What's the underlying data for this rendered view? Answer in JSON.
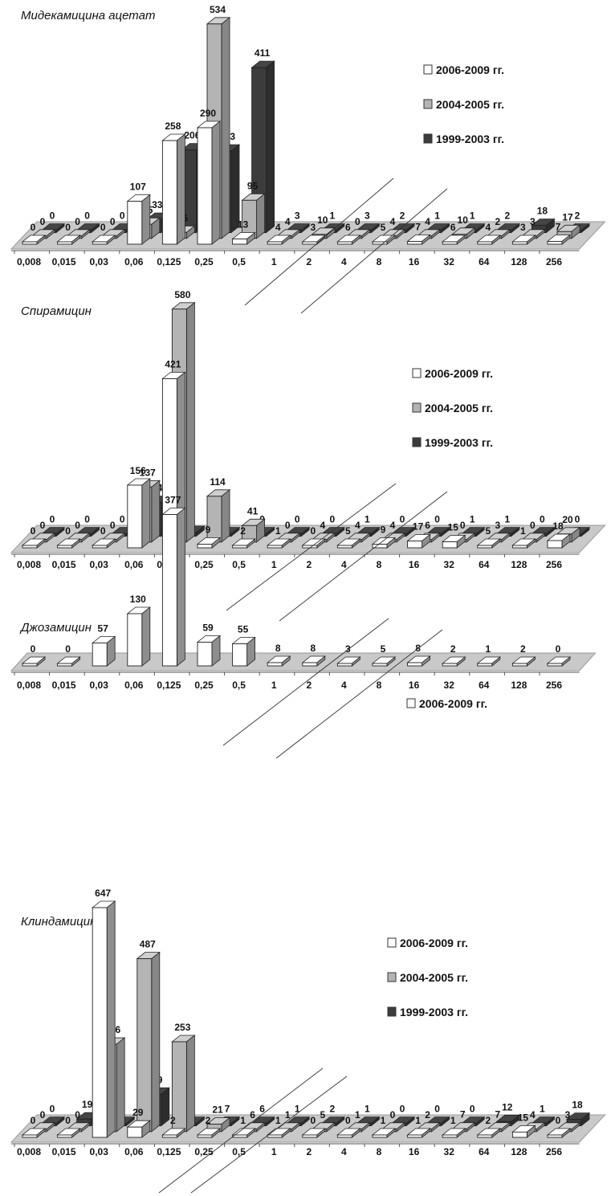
{
  "colors": {
    "series_2006_2009": "#ffffff",
    "series_2004_2005": "#b4b4b4",
    "series_1999_2003": "#3c3c3c",
    "floor": "#c9c9c9",
    "edge": "#222222"
  },
  "chart_data": [
    {
      "type": "bar",
      "title": "Мидекамицина ацетат",
      "categories": [
        "0,008",
        "0,015",
        "0,03",
        "0,06",
        "0,125",
        "0,25",
        "0,5",
        "1",
        "2",
        "4",
        "8",
        "16",
        "32",
        "64",
        "128",
        "256"
      ],
      "series": [
        {
          "name": "2006-2009 гг.",
          "values": [
            0,
            0,
            0,
            107,
            258,
            290,
            13,
            4,
            3,
            6,
            5,
            7,
            6,
            4,
            3,
            7
          ]
        },
        {
          "name": "2004-2005 гг.",
          "values": [
            0,
            0,
            0,
            35,
            15,
            534,
            95,
            4,
            10,
            0,
            4,
            4,
            10,
            2,
            3,
            17
          ]
        },
        {
          "name": "1999-2003 гг.",
          "values": [
            0,
            0,
            0,
            33,
            206,
            203,
            411,
            3,
            1,
            3,
            2,
            1,
            1,
            2,
            18,
            2
          ]
        }
      ],
      "legend": [
        "2006-2009 гг.",
        "2004-2005 гг.",
        "1999-2003 гг."
      ],
      "legend_position": "right",
      "grid": false
    },
    {
      "type": "bar",
      "title": "Спирамицин",
      "categories": [
        "0,008",
        "0,015",
        "0,03",
        "0,06",
        "0,125",
        "0,25",
        "0,5",
        "1",
        "2",
        "4",
        "8",
        "16",
        "32",
        "64",
        "128",
        "256"
      ],
      "series": [
        {
          "name": "2006-2009 гг.",
          "values": [
            0,
            0,
            0,
            156,
            421,
            9,
            2,
            1,
            0,
            5,
            9,
            17,
            15,
            5,
            1,
            18
          ]
        },
        {
          "name": "2004-2005 гг.",
          "values": [
            0,
            0,
            0,
            137,
            580,
            114,
            41,
            0,
            4,
            4,
            4,
            6,
            0,
            3,
            0,
            20
          ]
        },
        {
          "name": "1999-2003 гг.",
          "values": [
            0,
            0,
            0,
            84,
            9,
            1,
            0,
            0,
            0,
            1,
            0,
            0,
            1,
            1,
            0,
            0
          ]
        }
      ],
      "legend": [
        "2006-2009 гг.",
        "2004-2005 гг.",
        "1999-2003 гг."
      ],
      "legend_position": "right",
      "grid": false
    },
    {
      "type": "bar",
      "title": "Джозамицин",
      "categories": [
        "0,008",
        "0,015",
        "0,03",
        "0,06",
        "0,125",
        "0,25",
        "0,5",
        "1",
        "2",
        "4",
        "8",
        "16",
        "32",
        "64",
        "128",
        "256"
      ],
      "series": [
        {
          "name": "2006-2009 гг.",
          "values": [
            0,
            0,
            57,
            130,
            377,
            59,
            55,
            8,
            8,
            3,
            5,
            8,
            2,
            1,
            2,
            0
          ]
        }
      ],
      "legend": [
        "2006-2009 гг."
      ],
      "legend_position": "right",
      "grid": false
    },
    {
      "type": "bar",
      "title": "Клиндамицин",
      "categories": [
        "0,008",
        "0,015",
        "0,03",
        "0,06",
        "0,125",
        "0,25",
        "0,5",
        "1",
        "2",
        "4",
        "8",
        "16",
        "32",
        "64",
        "128",
        "256"
      ],
      "series": [
        {
          "name": "2006-2009 гг.",
          "values": [
            0,
            0,
            647,
            29,
            2,
            2,
            1,
            1,
            0,
            0,
            1,
            1,
            1,
            2,
            15,
            0
          ]
        },
        {
          "name": "2004-2005 гг.",
          "values": [
            0,
            0,
            246,
            487,
            253,
            21,
            6,
            1,
            5,
            1,
            0,
            2,
            7,
            7,
            4,
            3
          ]
        },
        {
          "name": "1999-2003 гг.",
          "values": [
            0,
            19,
            0,
            89,
            0,
            7,
            6,
            1,
            2,
            1,
            0,
            0,
            0,
            12,
            1,
            18
          ]
        }
      ],
      "legend": [
        "2006-2009 гг.",
        "2004-2005 гг.",
        "1999-2003 гг."
      ],
      "legend_position": "right",
      "grid": false
    }
  ]
}
